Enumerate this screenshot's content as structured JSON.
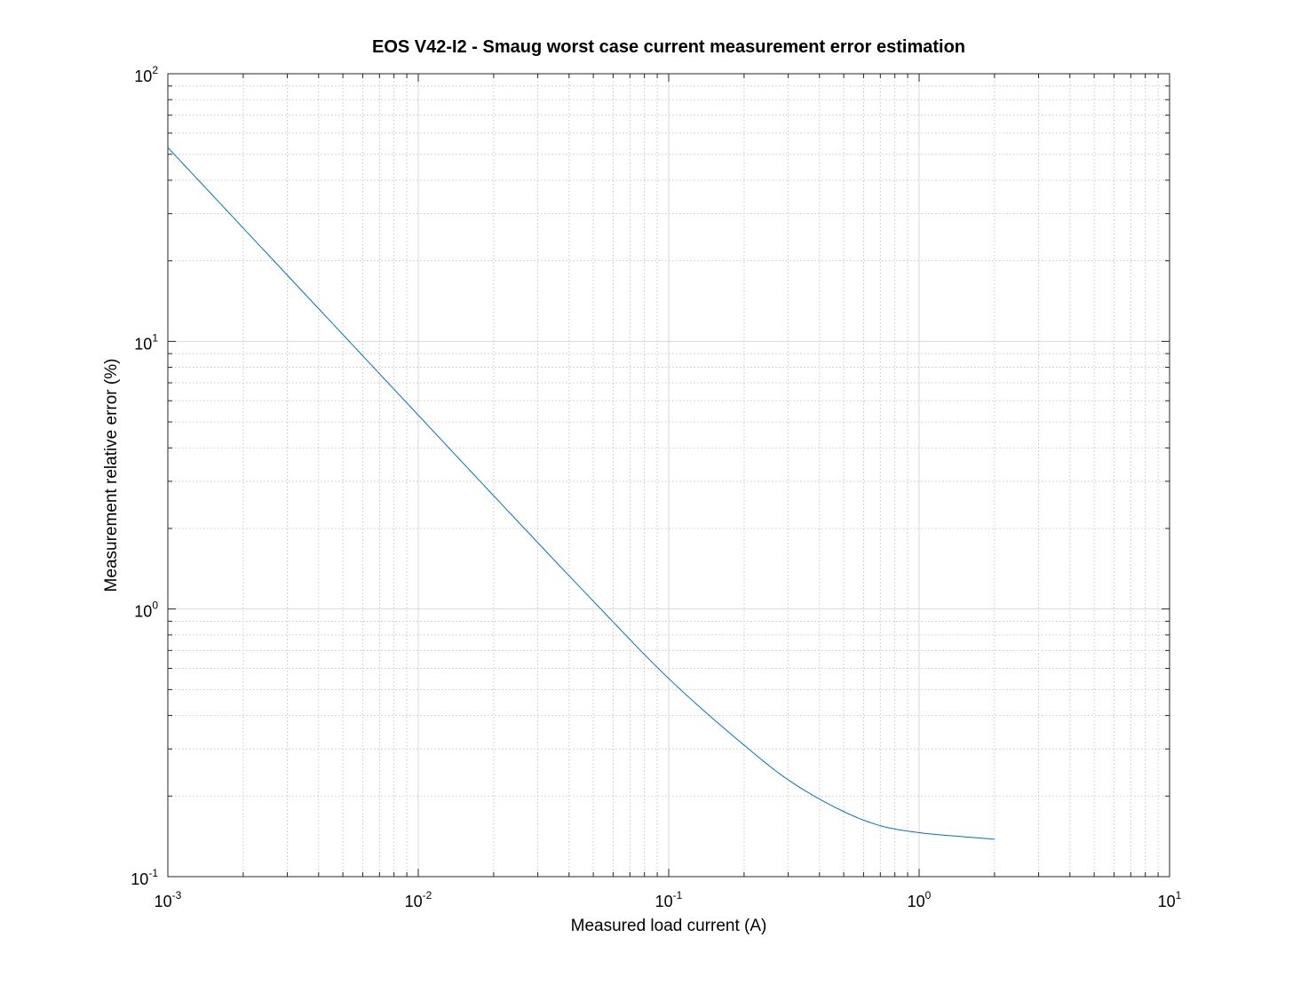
{
  "chart_data": {
    "type": "line",
    "title": "EOS V42-I2 - Smaug worst case current measurement error estimation",
    "xlabel": "Measured load current (A)",
    "ylabel": "Measurement relative error (%)",
    "xscale": "log",
    "yscale": "log",
    "xlim": [
      0.001,
      10
    ],
    "ylim": [
      0.1,
      100
    ],
    "x_ticks": [
      {
        "base": "10",
        "exp": "-3",
        "value": 0.001
      },
      {
        "base": "10",
        "exp": "-2",
        "value": 0.01
      },
      {
        "base": "10",
        "exp": "-1",
        "value": 0.1
      },
      {
        "base": "10",
        "exp": "0",
        "value": 1
      },
      {
        "base": "10",
        "exp": "1",
        "value": 10
      }
    ],
    "y_ticks": [
      {
        "base": "10",
        "exp": "-1",
        "value": 0.1
      },
      {
        "base": "10",
        "exp": "0",
        "value": 1
      },
      {
        "base": "10",
        "exp": "1",
        "value": 10
      },
      {
        "base": "10",
        "exp": "2",
        "value": 100
      }
    ],
    "grid": "major and minor",
    "series_color": "#0072bd",
    "series": [
      {
        "x": [
          0.001,
          0.002,
          0.005,
          0.01,
          0.02,
          0.05,
          0.1,
          0.2,
          0.3,
          0.5,
          0.7,
          1.0,
          1.5,
          2.0
        ],
        "y": [
          53.0,
          26.5,
          10.6,
          5.3,
          2.65,
          1.07,
          0.55,
          0.31,
          0.23,
          0.175,
          0.155,
          0.146,
          0.141,
          0.138
        ]
      }
    ]
  }
}
